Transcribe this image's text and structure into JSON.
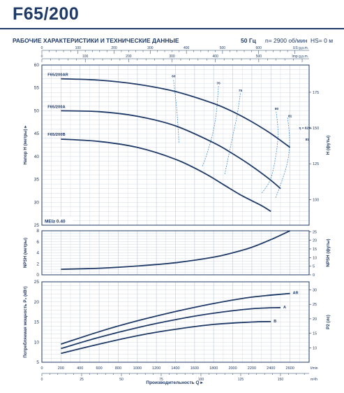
{
  "header": {
    "title": "F65/200",
    "subtitle": "РАБОЧИЕ ХАРАКТЕРИСТИКИ И ТЕХНИЧЕСКИЕ ДАННЫЕ",
    "frequency": "50 Гц",
    "speed": "n= 2900 об/мин",
    "hs": "HS= 0 м"
  },
  "colors": {
    "curve": "#1f3a66",
    "grid": "#c8d0dc",
    "efficiency": "#4a8fcf",
    "frame": "#1f3a66"
  },
  "chart_data": [
    {
      "type": "line",
      "name": "head",
      "ylabel": "Напор H (метры)",
      "ylabel_right": "H (футы)",
      "ylim": [
        25,
        60
      ],
      "yticks": [
        25,
        30,
        35,
        40,
        45,
        50,
        55,
        60
      ],
      "xlim": [
        0,
        2800
      ],
      "right_ticks": [
        100,
        125,
        150,
        175
      ],
      "top_axis": {
        "usgpm": {
          "label": "US g.p.m.",
          "ticks": [
            0,
            100,
            200,
            300,
            400,
            500,
            600
          ]
        },
        "impgpm": {
          "label": "Imp g.p.m.",
          "ticks": [
            0,
            100,
            200,
            300,
            400,
            500
          ]
        }
      },
      "note": "MEI≥ 0.40",
      "series": [
        {
          "name": "F65/200AR",
          "x": [
            200,
            600,
            1000,
            1400,
            1800,
            2000,
            2200,
            2400,
            2600
          ],
          "values": [
            57.0,
            56.7,
            55.8,
            54.2,
            51.6,
            49.8,
            47.6,
            45.0,
            42.0
          ]
        },
        {
          "name": "F65/200A",
          "x": [
            200,
            600,
            1000,
            1400,
            1800,
            2000,
            2200,
            2400,
            2500
          ],
          "values": [
            50.0,
            49.8,
            48.8,
            46.7,
            43.0,
            40.6,
            37.9,
            34.8,
            33.0
          ]
        },
        {
          "name": "F65/200B",
          "x": [
            200,
            600,
            1000,
            1400,
            1700,
            1900,
            2100,
            2300,
            2400
          ],
          "values": [
            43.8,
            43.3,
            42.0,
            39.4,
            36.4,
            33.9,
            31.4,
            29.3,
            28.0
          ]
        }
      ],
      "efficiency_labels": [
        "60",
        "70",
        "75",
        "80",
        "81",
        "η = 82%",
        "81"
      ],
      "efficiency_curves": [
        {
          "x": [
            1380,
            1410,
            1430,
            1435
          ],
          "values": [
            56.7,
            51.0,
            45.5,
            42.9
          ]
        },
        {
          "x": [
            1850,
            1830,
            1790,
            1720,
            1680
          ],
          "values": [
            55.4,
            50.0,
            45.0,
            40.0,
            37.8
          ]
        },
        {
          "x": [
            2080,
            2045,
            1995,
            1945,
            1915
          ],
          "values": [
            53.8,
            49.0,
            44.0,
            39.0,
            36.0
          ]
        },
        {
          "x": [
            2455,
            2475,
            2450,
            2395,
            2305
          ],
          "values": [
            49.8,
            45.0,
            40.0,
            35.0,
            32.0
          ]
        },
        {
          "x": [
            2575,
            2595,
            2580,
            2520,
            2450
          ],
          "values": [
            48.5,
            44.0,
            39.5,
            35.0,
            31.0
          ]
        }
      ]
    },
    {
      "type": "line",
      "name": "npsh",
      "ylabel": "NPSH (метры)",
      "ylabel_right": "NPSH (футы)",
      "ylim": [
        0,
        8
      ],
      "yticks": [
        0,
        2,
        4,
        6,
        8
      ],
      "right_ticks": [
        0,
        5,
        10,
        15,
        20,
        25
      ],
      "series": [
        {
          "name": "NPSH",
          "x": [
            200,
            600,
            1000,
            1400,
            1800,
            2000,
            2200,
            2400,
            2600
          ],
          "values": [
            1.0,
            1.2,
            1.6,
            2.2,
            3.2,
            4.0,
            5.0,
            6.4,
            8.0
          ]
        }
      ]
    },
    {
      "type": "line",
      "name": "power",
      "ylabel": "Потребляемая мощность P₂ (кВт)",
      "ylabel_right": "P2 (лс)",
      "ylim": [
        5,
        25
      ],
      "yticks": [
        5,
        10,
        15,
        20,
        25
      ],
      "right_ticks": [
        10,
        15,
        20,
        25,
        30
      ],
      "xlabel": "Производительность Q",
      "xticks": [
        0,
        200,
        400,
        600,
        800,
        1000,
        1200,
        1400,
        1600,
        1800,
        2000,
        2200,
        2400,
        2600
      ],
      "x_unit": "l/min",
      "bottom_ticks_m3h": [
        0,
        25,
        50,
        75,
        100,
        125,
        150
      ],
      "bottom_unit": "m³/h",
      "series": [
        {
          "name": "AR",
          "x": [
            200,
            600,
            1000,
            1400,
            1800,
            2200,
            2600
          ],
          "values": [
            9.5,
            12.6,
            15.3,
            17.6,
            19.6,
            21.2,
            22.1
          ]
        },
        {
          "name": "A",
          "x": [
            200,
            600,
            1000,
            1400,
            1800,
            2200,
            2500
          ],
          "values": [
            8.4,
            11.2,
            13.6,
            15.6,
            17.2,
            18.3,
            18.6
          ]
        },
        {
          "name": "B",
          "x": [
            200,
            600,
            1000,
            1400,
            1800,
            2200,
            2400
          ],
          "values": [
            7.2,
            9.5,
            11.6,
            13.2,
            14.4,
            15.0,
            15.1
          ]
        }
      ]
    }
  ]
}
